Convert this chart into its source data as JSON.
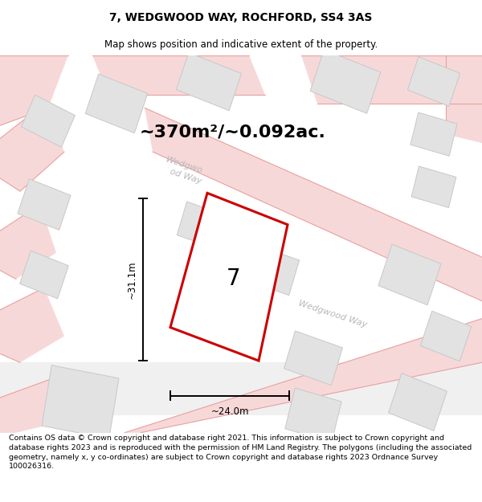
{
  "title": "7, WEDGWOOD WAY, ROCHFORD, SS4 3AS",
  "subtitle": "Map shows position and indicative extent of the property.",
  "area_text": "~370m²/~0.092ac.",
  "dim_height": "~31.1m",
  "dim_width": "~24.0m",
  "property_number": "7",
  "footer": "Contains OS data © Crown copyright and database right 2021. This information is subject to Crown copyright and database rights 2023 and is reproduced with the permission of HM Land Registry. The polygons (including the associated geometry, namely x, y co-ordinates) are subject to Crown copyright and database rights 2023 Ordnance Survey 100026316.",
  "title_fontsize": 10,
  "subtitle_fontsize": 8.5,
  "area_fontsize": 16,
  "dim_fontsize": 8.5,
  "footer_fontsize": 6.8,
  "road_fill": "#f7d8d8",
  "road_line": "#e8a0a0",
  "building_fill": "#e2e2e2",
  "building_edge": "#c8c8c8",
  "prop_edge": "#cc0000",
  "road_label": "#b8b8b8",
  "map_bg": "#ffffff"
}
